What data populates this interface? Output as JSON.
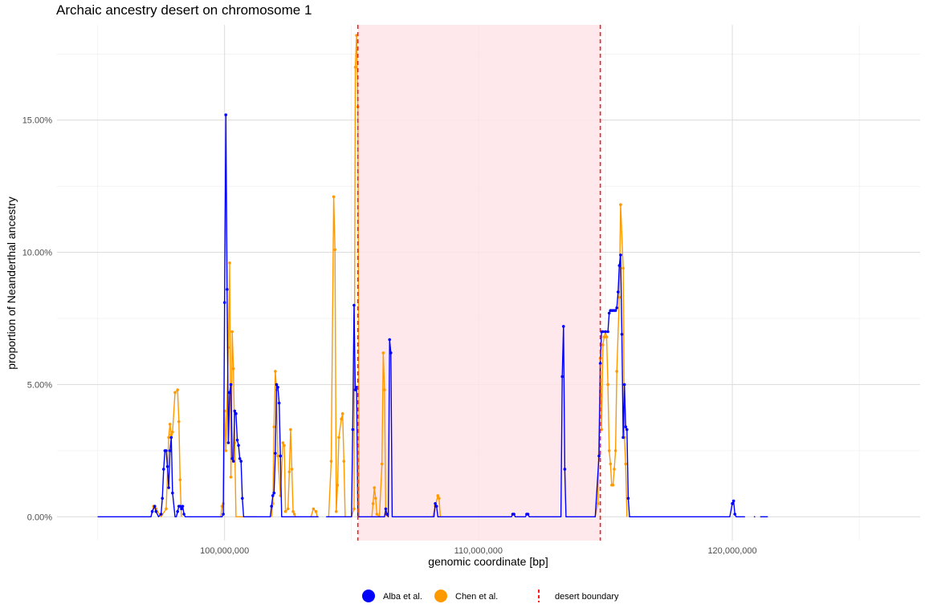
{
  "chart_data": {
    "type": "line",
    "title": "Archaic ancestry desert on chromosome 1",
    "xlabel": "genomic coordinate [bp]",
    "ylabel": "proportion of Neanderthal ancestry",
    "xlim": [
      93400000,
      127400000
    ],
    "ylim": [
      -0.009,
      0.186
    ],
    "x_ticks": [
      100000000,
      110000000,
      120000000
    ],
    "x_tick_labels": [
      "100,000,000",
      "110,000,000",
      "120,000,000"
    ],
    "y_ticks": [
      0,
      0.05,
      0.1,
      0.15
    ],
    "y_tick_labels": [
      "0.00%",
      "5.00%",
      "10.00%",
      "15.00%"
    ],
    "grid": true,
    "legend_position": "bottom",
    "desert": {
      "start": 105250000,
      "end": 114800000,
      "fill_color": "#ffe4e8",
      "line_color": "#ff1a1a",
      "label": "desert boundary"
    },
    "series": [
      {
        "name": "Chen et al.",
        "color": "#ff9900",
        "segments": [
          [
            [
              97100000,
              0
            ],
            [
              97200000,
              0.004
            ],
            [
              97300000,
              0.003
            ],
            [
              97500000,
              0
            ],
            [
              97700000,
              0.003
            ],
            [
              97800000,
              0.03
            ],
            [
              97850000,
              0.035
            ],
            [
              97900000,
              0.031
            ],
            [
              97950000,
              0.032
            ],
            [
              98050000,
              0.047
            ],
            [
              98150000,
              0.048
            ],
            [
              98200000,
              0.036
            ],
            [
              98250000,
              0.014
            ],
            [
              98300000,
              0
            ]
          ],
          [
            [
              99850000,
              0
            ],
            [
              99900000,
              0.004
            ],
            [
              99950000,
              0.005
            ],
            [
              100000000,
              0.04
            ],
            [
              100050000,
              0.025
            ],
            [
              100150000,
              0.064
            ],
            [
              100200000,
              0.096
            ],
            [
              100250000,
              0.015
            ],
            [
              100300000,
              0.07
            ],
            [
              100350000,
              0.056
            ],
            [
              100400000,
              0.028
            ],
            [
              100450000,
              0
            ],
            [
              101300000,
              0
            ]
          ],
          [
            [
              101850000,
              0
            ],
            [
              101900000,
              0.005
            ],
            [
              101950000,
              0.034
            ],
            [
              102000000,
              0.055
            ],
            [
              102050000,
              0.048
            ],
            [
              102100000,
              0.023
            ],
            [
              102200000,
              0.008
            ],
            [
              102300000,
              0.028
            ],
            [
              102350000,
              0.027
            ],
            [
              102400000,
              0.002
            ],
            [
              102500000,
              0.003
            ],
            [
              102550000,
              0.017
            ],
            [
              102600000,
              0.033
            ],
            [
              102650000,
              0.018
            ],
            [
              102700000,
              0.002
            ],
            [
              102750000,
              0.001
            ],
            [
              102800000,
              0
            ]
          ],
          [
            [
              103400000,
              0
            ],
            [
              103500000,
              0.003
            ],
            [
              103600000,
              0.002
            ],
            [
              103650000,
              0
            ]
          ],
          [
            [
              104100000,
              0
            ],
            [
              104200000,
              0.021
            ],
            [
              104300000,
              0.121
            ],
            [
              104350000,
              0.101
            ],
            [
              104400000,
              0.002
            ],
            [
              104450000,
              0.012
            ],
            [
              104500000,
              0.03
            ],
            [
              104600000,
              0.037
            ],
            [
              104650000,
              0.039
            ],
            [
              104700000,
              0.021
            ],
            [
              104750000,
              0
            ]
          ],
          [
            [
              105000000,
              0
            ],
            [
              105100000,
              0.003
            ],
            [
              105150000,
              0.17
            ],
            [
              105200000,
              0.182
            ],
            [
              105250000,
              0.155
            ],
            [
              105300000,
              0
            ]
          ],
          [
            [
              105800000,
              0
            ],
            [
              105850000,
              0.005
            ],
            [
              105900000,
              0.011
            ],
            [
              105950000,
              0.007
            ],
            [
              106000000,
              0.001
            ],
            [
              106100000,
              0
            ],
            [
              106200000,
              0.02
            ],
            [
              106250000,
              0.062
            ],
            [
              106300000,
              0.048
            ],
            [
              106350000,
              0.001
            ],
            [
              106400000,
              0
            ]
          ],
          [
            [
              108200000,
              0
            ],
            [
              108300000,
              0.004
            ],
            [
              108400000,
              0.008
            ],
            [
              108450000,
              0.007
            ],
            [
              108500000,
              0
            ]
          ],
          [
            [
              114600000,
              0
            ],
            [
              114700000,
              0.005
            ],
            [
              114800000,
              0.06
            ],
            [
              114850000,
              0.033
            ],
            [
              114900000,
              0.065
            ],
            [
              114950000,
              0.068
            ],
            [
              115000000,
              0.07
            ],
            [
              115050000,
              0.068
            ],
            [
              115100000,
              0.05
            ],
            [
              115150000,
              0.025
            ],
            [
              115200000,
              0.02
            ],
            [
              115250000,
              0.012
            ],
            [
              115300000,
              0.012
            ],
            [
              115350000,
              0.018
            ],
            [
              115400000,
              0.025
            ],
            [
              115450000,
              0.055
            ],
            [
              115550000,
              0.083
            ],
            [
              115600000,
              0.118
            ],
            [
              115700000,
              0.094
            ],
            [
              115750000,
              0.03
            ],
            [
              115800000,
              0.02
            ],
            [
              115850000,
              0
            ]
          ]
        ]
      },
      {
        "name": "Alba et al.",
        "color": "#0000ff",
        "segments": [
          [
            [
              95000000,
              0
            ],
            [
              97100000,
              0
            ],
            [
              97150000,
              0.002
            ],
            [
              97250000,
              0.004
            ],
            [
              97300000,
              0.002
            ],
            [
              97400000,
              0
            ],
            [
              97500000,
              0.001
            ],
            [
              97550000,
              0.007
            ],
            [
              97600000,
              0.018
            ],
            [
              97650000,
              0.025
            ],
            [
              97700000,
              0.025
            ],
            [
              97750000,
              0.019
            ],
            [
              97800000,
              0.011
            ],
            [
              97850000,
              0.025
            ],
            [
              97900000,
              0.03
            ],
            [
              97950000,
              0.009
            ],
            [
              98050000,
              0
            ],
            [
              98100000,
              0
            ],
            [
              98150000,
              0.002
            ],
            [
              98200000,
              0.004
            ],
            [
              98250000,
              0.004
            ],
            [
              98300000,
              0.003
            ],
            [
              98350000,
              0.004
            ],
            [
              98400000,
              0.001
            ],
            [
              98450000,
              0
            ],
            [
              99900000,
              0
            ],
            [
              99950000,
              0.001
            ],
            [
              100000000,
              0.081
            ],
            [
              100050000,
              0.152
            ],
            [
              100100000,
              0.086
            ],
            [
              100150000,
              0.028
            ],
            [
              100200000,
              0.047
            ],
            [
              100250000,
              0.05
            ],
            [
              100300000,
              0.022
            ],
            [
              100350000,
              0.021
            ],
            [
              100400000,
              0.04
            ],
            [
              100450000,
              0.039
            ],
            [
              100500000,
              0.029
            ],
            [
              100550000,
              0.027
            ],
            [
              100600000,
              0.022
            ],
            [
              100650000,
              0.021
            ],
            [
              100700000,
              0.007
            ],
            [
              100750000,
              0
            ],
            [
              101800000,
              0
            ],
            [
              101850000,
              0.004
            ],
            [
              101900000,
              0.008
            ],
            [
              101950000,
              0.009
            ],
            [
              102000000,
              0.024
            ],
            [
              102050000,
              0.05
            ],
            [
              102100000,
              0.049
            ],
            [
              102150000,
              0.043
            ],
            [
              102200000,
              0.023
            ],
            [
              102250000,
              0
            ],
            [
              103700000,
              0
            ]
          ],
          [
            [
              104000000,
              0
            ],
            [
              105000000,
              0
            ],
            [
              105050000,
              0.033
            ],
            [
              105100000,
              0.08
            ],
            [
              105150000,
              0.048
            ],
            [
              105200000,
              0.049
            ],
            [
              105250000,
              0
            ],
            [
              106300000,
              0
            ],
            [
              106350000,
              0.003
            ],
            [
              106400000,
              0.001
            ],
            [
              106450000,
              0
            ],
            [
              106500000,
              0.067
            ],
            [
              106550000,
              0.062
            ],
            [
              106600000,
              0
            ],
            [
              108250000,
              0
            ],
            [
              108300000,
              0.005
            ],
            [
              108350000,
              0.004
            ],
            [
              108400000,
              0
            ],
            [
              111300000,
              0
            ],
            [
              111350000,
              0.001
            ],
            [
              111400000,
              0.001
            ],
            [
              111450000,
              0
            ],
            [
              111850000,
              0
            ],
            [
              111900000,
              0.001
            ],
            [
              111950000,
              0.001
            ],
            [
              112000000,
              0
            ],
            [
              113250000,
              0
            ],
            [
              113300000,
              0.053
            ],
            [
              113350000,
              0.072
            ],
            [
              113400000,
              0.018
            ],
            [
              113450000,
              0
            ],
            [
              114600000,
              0
            ],
            [
              114750000,
              0.023
            ],
            [
              114800000,
              0.058
            ],
            [
              114850000,
              0.07
            ],
            [
              114900000,
              0.07
            ],
            [
              115000000,
              0.07
            ],
            [
              115100000,
              0.07
            ],
            [
              115150000,
              0.077
            ],
            [
              115200000,
              0.078
            ],
            [
              115250000,
              0.078
            ],
            [
              115300000,
              0.078
            ],
            [
              115350000,
              0.078
            ],
            [
              115400000,
              0.078
            ],
            [
              115450000,
              0.079
            ],
            [
              115500000,
              0.085
            ],
            [
              115550000,
              0.095
            ],
            [
              115600000,
              0.099
            ],
            [
              115650000,
              0.069
            ],
            [
              115700000,
              0.03
            ],
            [
              115750000,
              0.05
            ],
            [
              115800000,
              0.034
            ],
            [
              115850000,
              0.033
            ],
            [
              115900000,
              0.007
            ],
            [
              115950000,
              0
            ],
            [
              119900000,
              0
            ],
            [
              120000000,
              0.005
            ],
            [
              120050000,
              0.006
            ],
            [
              120100000,
              0.001
            ],
            [
              120150000,
              0
            ],
            [
              120500000,
              0
            ]
          ],
          [
            [
              120850000,
              0
            ],
            [
              120900000,
              0
            ]
          ],
          [
            [
              121100000,
              0
            ],
            [
              121400000,
              0
            ]
          ]
        ]
      }
    ]
  },
  "legend": {
    "items": [
      {
        "label": "Alba et al.",
        "color": "#0000ff"
      },
      {
        "label": "Chen et al.",
        "color": "#ff9900"
      }
    ],
    "boundary_label": "desert boundary"
  }
}
